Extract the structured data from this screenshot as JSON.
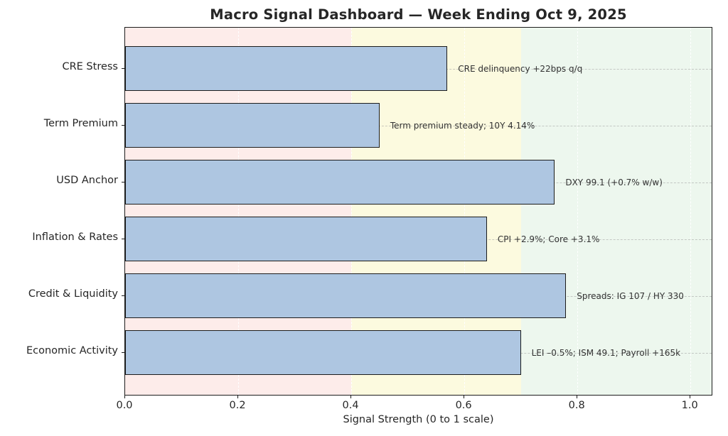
{
  "chart_data": {
    "type": "bar",
    "orientation": "horizontal",
    "title": "Macro Signal Dashboard — Week Ending Oct 9, 2025",
    "xlabel": "Signal Strength (0 to 1 scale)",
    "ylabel": "",
    "categories": [
      "CRE Stress",
      "Term Premium",
      "USD Anchor",
      "Inflation & Rates",
      "Credit & Liquidity",
      "Economic Activity"
    ],
    "values": [
      0.57,
      0.45,
      0.76,
      0.64,
      0.78,
      0.7
    ],
    "annotations": [
      "CRE delinquency +22bps q/q",
      "Term premium steady; 10Y 4.14%",
      "DXY 99.1 (+0.7% w/w)",
      "CPI +2.9%; Core +3.1%",
      "Spreads: IG 107 / HY 330",
      "LEI –0.5%; ISM 49.1; Payroll +165k"
    ],
    "x_ticks": [
      0.0,
      0.2,
      0.4,
      0.6,
      0.8,
      1.0
    ],
    "x_tick_labels": [
      "0.0",
      "0.2",
      "0.4",
      "0.6",
      "0.8",
      "1.0"
    ],
    "xlim": [
      0,
      1.04
    ],
    "grid": true,
    "legend": null,
    "zones": [
      {
        "name": "red-zone",
        "from": 0.0,
        "to": 0.4,
        "color": "#fdecea"
      },
      {
        "name": "yellow-zone",
        "from": 0.4,
        "to": 0.7,
        "color": "#fcfadf"
      },
      {
        "name": "green-zone",
        "from": 0.7,
        "to": 1.04,
        "color": "#edf7ee"
      }
    ],
    "colors": {
      "bar_fill": "#aec6e1",
      "bar_edge": "#1c1c1c",
      "annotation_text": "#333333",
      "axis_text": "#262626"
    }
  }
}
